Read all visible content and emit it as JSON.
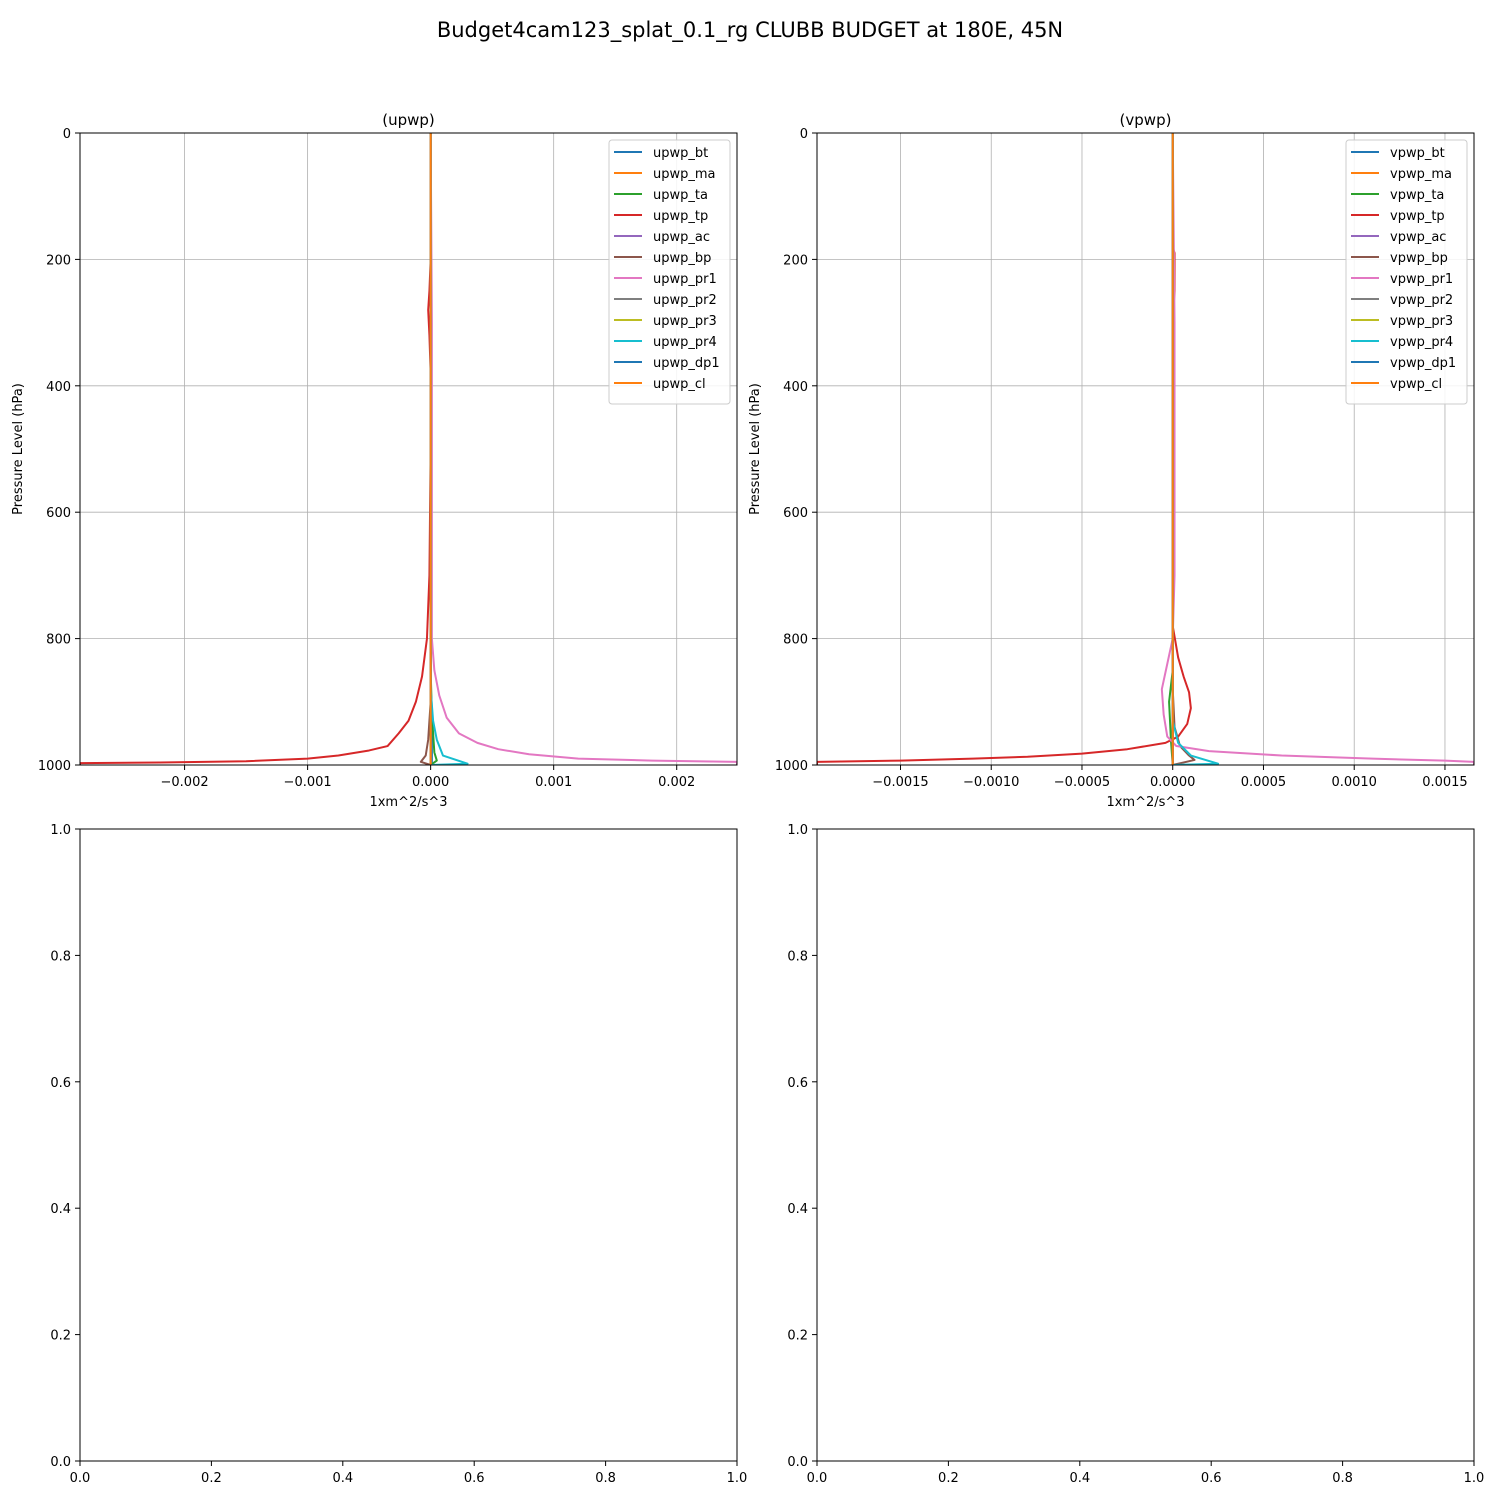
{
  "figure": {
    "title": "Budget4cam123_splat_0.1_rg CLUBB BUDGET at 180E, 45N"
  },
  "chart_data": [
    {
      "id": "upwp",
      "type": "line",
      "orientation": "vertical-profile",
      "title": "(upwp)",
      "xlabel": "1xm^2/s^3",
      "ylabel": "Pressure Level (hPa)",
      "xlim": [
        -0.00285,
        0.00249
      ],
      "ylim": [
        1000,
        0
      ],
      "y_inverted": true,
      "grid": true,
      "legend_position": "top-right",
      "x_ticks": [
        -0.002,
        -0.001,
        0.0,
        0.001,
        0.002
      ],
      "x_tick_labels": [
        "−0.002",
        "−0.001",
        "0.000",
        "0.001",
        "0.002"
      ],
      "y_ticks": [
        0,
        200,
        400,
        600,
        800,
        1000
      ],
      "y_tick_labels": [
        "0",
        "200",
        "400",
        "600",
        "800",
        "1000"
      ],
      "series": [
        {
          "name": "upwp_bt",
          "color": "#1f77b4",
          "points": [
            [
              0,
              0
            ],
            [
              0,
              900
            ],
            [
              1e-05,
              960
            ],
            [
              1e-05,
              995
            ],
            [
              0,
              1000
            ]
          ]
        },
        {
          "name": "upwp_ma",
          "color": "#ff7f0e",
          "points": [
            [
              0,
              0
            ],
            [
              0,
              1000
            ]
          ]
        },
        {
          "name": "upwp_ta",
          "color": "#2ca02c",
          "points": [
            [
              0,
              0
            ],
            [
              0,
              850
            ],
            [
              1e-05,
              920
            ],
            [
              3e-05,
              980
            ],
            [
              5e-05,
              993
            ],
            [
              0,
              1000
            ]
          ]
        },
        {
          "name": "upwp_tp",
          "color": "#d62728",
          "points": [
            [
              0,
              0
            ],
            [
              0,
              200
            ],
            [
              -1e-05,
              250
            ],
            [
              -2e-05,
              280
            ],
            [
              -1e-05,
              320
            ],
            [
              0,
              380
            ],
            [
              0,
              500
            ],
            [
              -1e-05,
              700
            ],
            [
              -3e-05,
              800
            ],
            [
              -7e-05,
              860
            ],
            [
              -0.00012,
              900
            ],
            [
              -0.00018,
              930
            ],
            [
              -0.00026,
              950
            ],
            [
              -0.00035,
              970
            ],
            [
              -0.0005,
              977
            ],
            [
              -0.00075,
              985
            ],
            [
              -0.001,
              990
            ],
            [
              -0.0015,
              994
            ],
            [
              -0.0022,
              996
            ],
            [
              -0.00285,
              997
            ],
            [
              -0.00285,
              1000
            ]
          ]
        },
        {
          "name": "upwp_ac",
          "color": "#9467bd",
          "points": [
            [
              0,
              0
            ],
            [
              0,
              1000
            ]
          ]
        },
        {
          "name": "upwp_bp",
          "color": "#8c564b",
          "points": [
            [
              0,
              0
            ],
            [
              0,
              900
            ],
            [
              -2e-05,
              960
            ],
            [
              -4e-05,
              985
            ],
            [
              -8e-05,
              995
            ],
            [
              0,
              1000
            ]
          ]
        },
        {
          "name": "upwp_pr1",
          "color": "#e377c2",
          "points": [
            [
              0,
              0
            ],
            [
              1e-05,
              300
            ],
            [
              1e-05,
              800
            ],
            [
              3e-05,
              850
            ],
            [
              7e-05,
              890
            ],
            [
              0.00013,
              925
            ],
            [
              0.00023,
              950
            ],
            [
              0.00038,
              965
            ],
            [
              0.00055,
              975
            ],
            [
              0.0008,
              983
            ],
            [
              0.0012,
              990
            ],
            [
              0.0018,
              993
            ],
            [
              0.00249,
              995
            ],
            [
              0.00249,
              1000
            ]
          ]
        },
        {
          "name": "upwp_pr2",
          "color": "#7f7f7f",
          "points": [
            [
              0,
              0
            ],
            [
              0,
              1000
            ]
          ]
        },
        {
          "name": "upwp_pr3",
          "color": "#bcbd22",
          "points": [
            [
              0,
              0
            ],
            [
              0,
              1000
            ]
          ]
        },
        {
          "name": "upwp_pr4",
          "color": "#17becf",
          "points": [
            [
              0,
              0
            ],
            [
              0,
              880
            ],
            [
              2e-05,
              930
            ],
            [
              5e-05,
              960
            ],
            [
              0.0001,
              985
            ],
            [
              0.0003,
              998
            ],
            [
              0,
              1000
            ]
          ]
        },
        {
          "name": "upwp_dp1",
          "color": "#1f77b4",
          "points": [
            [
              0,
              0
            ],
            [
              0,
              1000
            ]
          ]
        },
        {
          "name": "upwp_cl",
          "color": "#ff7f0e",
          "points": [
            [
              0,
              0
            ],
            [
              0,
              1000
            ]
          ]
        }
      ]
    },
    {
      "id": "vpwp",
      "type": "line",
      "orientation": "vertical-profile",
      "title": "(vpwp)",
      "xlabel": "1xm^2/s^3",
      "ylabel": "Pressure Level (hPa)",
      "xlim": [
        -0.00196,
        0.00166
      ],
      "ylim": [
        1000,
        0
      ],
      "y_inverted": true,
      "grid": true,
      "legend_position": "top-right",
      "x_ticks": [
        -0.0015,
        -0.001,
        -0.0005,
        0.0,
        0.0005,
        0.001,
        0.0015
      ],
      "x_tick_labels": [
        "−0.0015",
        "−0.0010",
        "−0.0005",
        "0.0000",
        "0.0005",
        "0.0010",
        "0.0015"
      ],
      "y_ticks": [
        0,
        200,
        400,
        600,
        800,
        1000
      ],
      "y_tick_labels": [
        "0",
        "200",
        "400",
        "600",
        "800",
        "1000"
      ],
      "series": [
        {
          "name": "vpwp_bt",
          "color": "#1f77b4",
          "points": [
            [
              0,
              0
            ],
            [
              0,
              1000
            ]
          ]
        },
        {
          "name": "vpwp_ma",
          "color": "#ff7f0e",
          "points": [
            [
              0,
              0
            ],
            [
              0,
              1000
            ]
          ]
        },
        {
          "name": "vpwp_ta",
          "color": "#2ca02c",
          "points": [
            [
              0,
              0
            ],
            [
              0,
              850
            ],
            [
              -2e-05,
              900
            ],
            [
              -1e-05,
              960
            ],
            [
              0,
              1000
            ]
          ]
        },
        {
          "name": "vpwp_tp",
          "color": "#d62728",
          "points": [
            [
              0,
              0
            ],
            [
              0,
              180
            ],
            [
              1e-05,
              190
            ],
            [
              1e-05,
              250
            ],
            [
              0,
              300
            ],
            [
              0,
              780
            ],
            [
              3e-05,
              830
            ],
            [
              6e-05,
              860
            ],
            [
              9e-05,
              885
            ],
            [
              0.0001,
              910
            ],
            [
              8e-05,
              935
            ],
            [
              3e-05,
              955
            ],
            [
              -4e-05,
              965
            ],
            [
              -0.00025,
              975
            ],
            [
              -0.0005,
              982
            ],
            [
              -0.0008,
              987
            ],
            [
              -0.0011,
              990
            ],
            [
              -0.0015,
              993
            ],
            [
              -0.00196,
              995
            ],
            [
              -0.00196,
              1000
            ]
          ]
        },
        {
          "name": "vpwp_ac",
          "color": "#9467bd",
          "points": [
            [
              0,
              0
            ],
            [
              0,
              1000
            ]
          ]
        },
        {
          "name": "vpwp_bp",
          "color": "#8c564b",
          "points": [
            [
              0,
              0
            ],
            [
              0,
              880
            ],
            [
              1e-05,
              940
            ],
            [
              4e-05,
              970
            ],
            [
              9e-05,
              985
            ],
            [
              0.00012,
              992
            ],
            [
              0,
              1000
            ]
          ]
        },
        {
          "name": "vpwp_pr1",
          "color": "#e377c2",
          "points": [
            [
              0,
              0
            ],
            [
              1e-05,
              300
            ],
            [
              1e-05,
              700
            ],
            [
              0,
              800
            ],
            [
              -3e-05,
              840
            ],
            [
              -6e-05,
              880
            ],
            [
              -5e-05,
              920
            ],
            [
              -3e-05,
              955
            ],
            [
              2e-05,
              970
            ],
            [
              0.0002,
              978
            ],
            [
              0.0006,
              985
            ],
            [
              0.0011,
              990
            ],
            [
              0.0015,
              993
            ],
            [
              0.00166,
              995
            ],
            [
              0.00166,
              1000
            ]
          ]
        },
        {
          "name": "vpwp_pr2",
          "color": "#7f7f7f",
          "points": [
            [
              0,
              0
            ],
            [
              0,
              1000
            ]
          ]
        },
        {
          "name": "vpwp_pr3",
          "color": "#bcbd22",
          "points": [
            [
              0,
              0
            ],
            [
              0,
              1000
            ]
          ]
        },
        {
          "name": "vpwp_pr4",
          "color": "#17becf",
          "points": [
            [
              0,
              0
            ],
            [
              0,
              930
            ],
            [
              3e-05,
              965
            ],
            [
              0.0001,
              985
            ],
            [
              0.00025,
              998
            ],
            [
              0,
              1000
            ]
          ]
        },
        {
          "name": "vpwp_dp1",
          "color": "#1f77b4",
          "points": [
            [
              0,
              0
            ],
            [
              0,
              1000
            ]
          ]
        },
        {
          "name": "vpwp_cl",
          "color": "#ff7f0e",
          "points": [
            [
              0,
              0
            ],
            [
              0,
              1000
            ]
          ]
        }
      ]
    },
    {
      "id": "empty-left",
      "type": "line",
      "title": "",
      "xlim": [
        0,
        1
      ],
      "ylim": [
        0,
        1
      ],
      "grid": false,
      "x_ticks": [
        0,
        0.2,
        0.4,
        0.6,
        0.8,
        1.0
      ],
      "x_tick_labels": [
        "0.0",
        "0.2",
        "0.4",
        "0.6",
        "0.8",
        "1.0"
      ],
      "y_ticks": [
        0,
        0.2,
        0.4,
        0.6,
        0.8,
        1.0
      ],
      "y_tick_labels": [
        "0.0",
        "0.2",
        "0.4",
        "0.6",
        "0.8",
        "1.0"
      ],
      "series": []
    },
    {
      "id": "empty-right",
      "type": "line",
      "title": "",
      "xlim": [
        0,
        1
      ],
      "ylim": [
        0,
        1
      ],
      "grid": false,
      "x_ticks": [
        0,
        0.2,
        0.4,
        0.6,
        0.8,
        1.0
      ],
      "x_tick_labels": [
        "0.0",
        "0.2",
        "0.4",
        "0.6",
        "0.8",
        "1.0"
      ],
      "y_ticks": [
        0,
        0.2,
        0.4,
        0.6,
        0.8,
        1.0
      ],
      "y_tick_labels": [
        "0.0",
        "0.2",
        "0.4",
        "0.6",
        "0.8",
        "1.0"
      ],
      "series": []
    }
  ]
}
